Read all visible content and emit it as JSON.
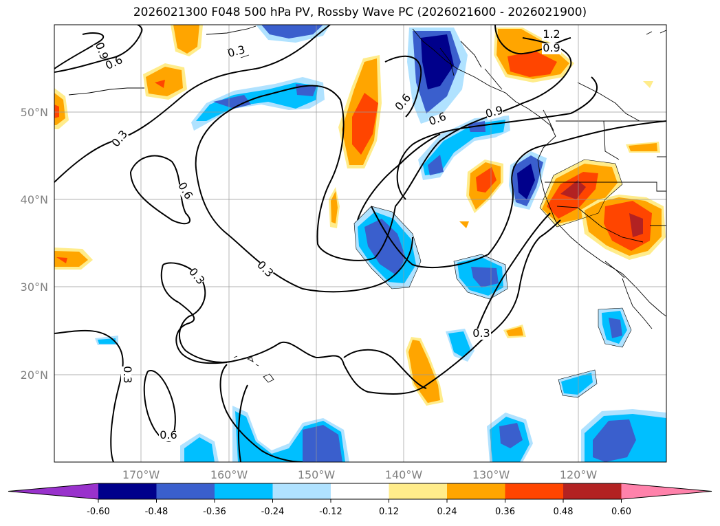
{
  "title": "2026021300 F048 500 hPa PV, Rossby Wave PC (2026021600 - 2026021900)",
  "lat_labels": [
    "50°N",
    "40°N",
    "30°N",
    "20°N"
  ],
  "lon_labels": [
    "170°W",
    "160°W",
    "150°W",
    "140°W",
    "130°W",
    "120°W"
  ],
  "contour_labels": [
    "0.9",
    "0.6",
    "0.3",
    "0.6",
    "0.3",
    "0.6",
    "0.3",
    "0.3",
    "0.6",
    "0.3",
    "0.3",
    "0.6",
    "0.3",
    "0.6",
    "0.9",
    "1.2",
    "0.9",
    "0.6"
  ],
  "colorbar": {
    "ticks": [
      "-0.60",
      "-0.48",
      "-0.36",
      "-0.24",
      "-0.12",
      "0.12",
      "0.24",
      "0.36",
      "0.48",
      "0.60"
    ],
    "colors": [
      "#9932cc",
      "#00008b",
      "#3a5fcd",
      "#00bfff",
      "#b0e2ff",
      "#ffffff",
      "#ffec8b",
      "#ffa500",
      "#ff4500",
      "#b22222",
      "#ff82ab"
    ]
  }
}
